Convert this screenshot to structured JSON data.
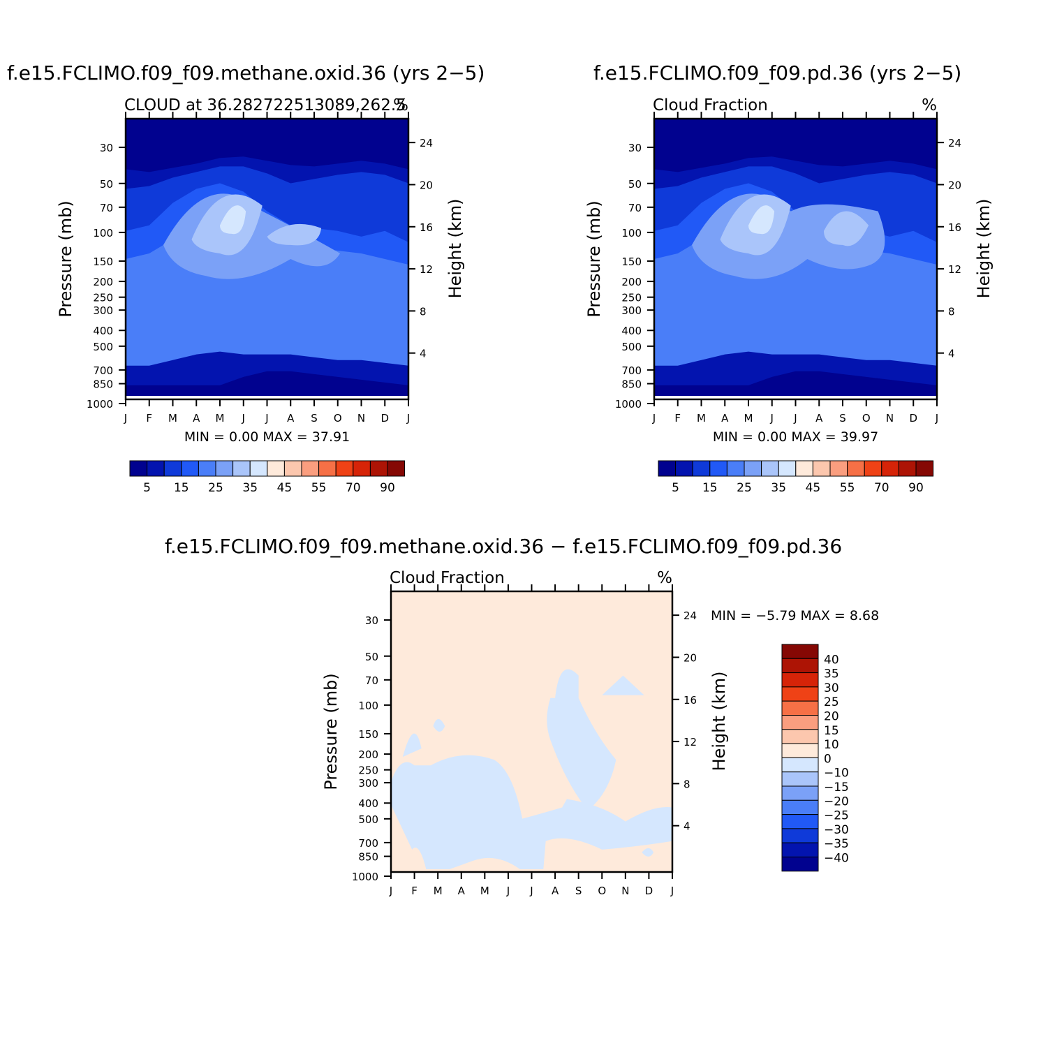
{
  "palette": {
    "cbar": [
      "#01028f",
      "#0314af",
      "#0f3ad9",
      "#2159f6",
      "#4a7ef8",
      "#7ba1f7",
      "#aac5fa",
      "#d5e7fe",
      "#feeadb",
      "#fcc7ae",
      "#fa9e7f",
      "#f67046",
      "#ef4216",
      "#d62408",
      "#ad1405",
      "#850804"
    ],
    "diff_cbar": [
      "#01028f",
      "#0314af",
      "#0f3ad9",
      "#2159f6",
      "#4a7ef8",
      "#7ba1f7",
      "#aac5fa",
      "#d5e7fe",
      "#feeadb",
      "#fcc7ae",
      "#fa9e7f",
      "#f67046",
      "#ef4216",
      "#d62408",
      "#ad1405",
      "#850804"
    ]
  },
  "chart_data": [
    {
      "id": "panel1",
      "type": "contour",
      "title": "f.e15.FCLIMO.f09_f09.methane.oxid.36 (yrs 2−5)",
      "left_label": "CLOUD at 36.282722513089,262.5",
      "right_label": "%",
      "ylabel": "Pressure (mb)",
      "ylabel_right": "Height (km)",
      "x_ticks": [
        "J",
        "F",
        "M",
        "A",
        "M",
        "J",
        "J",
        "A",
        "S",
        "O",
        "N",
        "D",
        "J"
      ],
      "y_ticks": [
        "30",
        "50",
        "70",
        "100",
        "150",
        "200",
        "250",
        "300",
        "400",
        "500",
        "700",
        "850",
        "1000"
      ],
      "y_ticks_right": [
        "24",
        "20",
        "16",
        "12",
        "8",
        "4"
      ],
      "stats_text": "MIN =    0.00  MAX =   37.91",
      "min": 0.0,
      "max": 37.91,
      "levels": [
        "5",
        "15",
        "25",
        "35",
        "45",
        "55",
        "70",
        "90"
      ]
    },
    {
      "id": "panel2",
      "type": "contour",
      "title": "f.e15.FCLIMO.f09_f09.pd.36 (yrs 2−5)",
      "left_label": "Cloud Fraction",
      "right_label": "%",
      "ylabel": "Pressure (mb)",
      "ylabel_right": "Height (km)",
      "x_ticks": [
        "J",
        "F",
        "M",
        "A",
        "M",
        "J",
        "J",
        "A",
        "S",
        "O",
        "N",
        "D",
        "J"
      ],
      "y_ticks": [
        "30",
        "50",
        "70",
        "100",
        "150",
        "200",
        "250",
        "300",
        "400",
        "500",
        "700",
        "850",
        "1000"
      ],
      "y_ticks_right": [
        "24",
        "20",
        "16",
        "12",
        "8",
        "4"
      ],
      "stats_text": "MIN =    0.00  MAX =   39.97",
      "min": 0.0,
      "max": 39.97,
      "levels": [
        "5",
        "15",
        "25",
        "35",
        "45",
        "55",
        "70",
        "90"
      ]
    },
    {
      "id": "panel3",
      "type": "contour",
      "title": "f.e15.FCLIMO.f09_f09.methane.oxid.36 − f.e15.FCLIMO.f09_f09.pd.36",
      "left_label": "Cloud Fraction",
      "right_label": "%",
      "ylabel": "Pressure (mb)",
      "ylabel_right": "Height (km)",
      "x_ticks": [
        "J",
        "F",
        "M",
        "A",
        "M",
        "J",
        "J",
        "A",
        "S",
        "O",
        "N",
        "D",
        "J"
      ],
      "y_ticks": [
        "30",
        "50",
        "70",
        "100",
        "150",
        "200",
        "250",
        "300",
        "400",
        "500",
        "700",
        "850",
        "1000"
      ],
      "y_ticks_right": [
        "24",
        "20",
        "16",
        "12",
        "8",
        "4"
      ],
      "stats_text": "MIN =   −5.79  MAX =    8.68",
      "min": -5.79,
      "max": 8.68,
      "levels": [
        "40",
        "35",
        "30",
        "25",
        "20",
        "15",
        "10",
        "0",
        "−10",
        "−15",
        "−20",
        "−25",
        "−30",
        "−35",
        "−40"
      ]
    }
  ]
}
